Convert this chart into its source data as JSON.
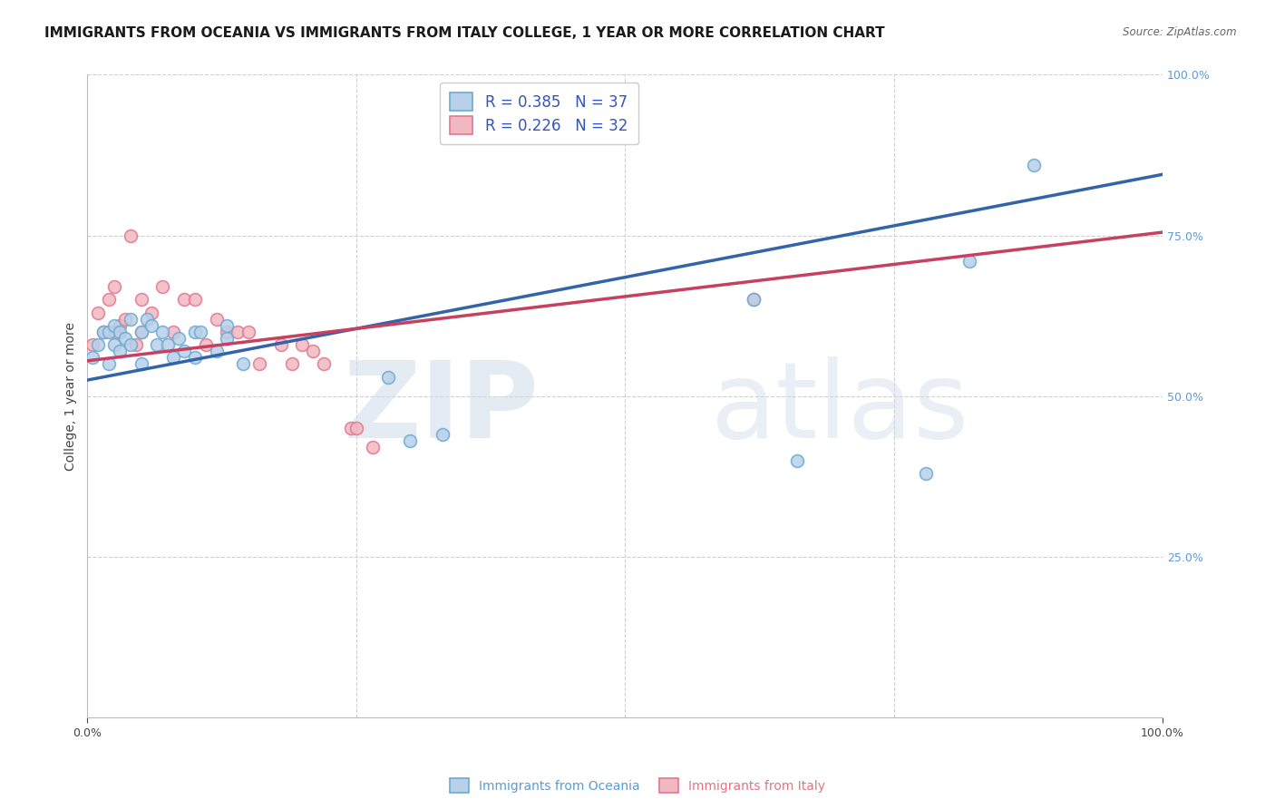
{
  "title": "IMMIGRANTS FROM OCEANIA VS IMMIGRANTS FROM ITALY COLLEGE, 1 YEAR OR MORE CORRELATION CHART",
  "source_text": "Source: ZipAtlas.com",
  "ylabel": "College, 1 year or more",
  "watermark_zip": "ZIP",
  "watermark_atlas": "atlas",
  "R_blue": 0.385,
  "N_blue": 37,
  "R_pink": 0.226,
  "N_pink": 32,
  "blue_scatter_x": [
    0.005,
    0.01,
    0.015,
    0.02,
    0.02,
    0.025,
    0.025,
    0.03,
    0.03,
    0.035,
    0.04,
    0.04,
    0.05,
    0.05,
    0.055,
    0.06,
    0.065,
    0.07,
    0.075,
    0.08,
    0.085,
    0.09,
    0.1,
    0.1,
    0.105,
    0.12,
    0.13,
    0.13,
    0.145,
    0.28,
    0.3,
    0.33,
    0.62,
    0.66,
    0.78,
    0.82,
    0.88
  ],
  "blue_scatter_y": [
    0.56,
    0.58,
    0.6,
    0.55,
    0.6,
    0.61,
    0.58,
    0.57,
    0.6,
    0.59,
    0.62,
    0.58,
    0.55,
    0.6,
    0.62,
    0.61,
    0.58,
    0.6,
    0.58,
    0.56,
    0.59,
    0.57,
    0.6,
    0.56,
    0.6,
    0.57,
    0.59,
    0.61,
    0.55,
    0.53,
    0.43,
    0.44,
    0.65,
    0.4,
    0.38,
    0.71,
    0.86
  ],
  "pink_scatter_x": [
    0.005,
    0.01,
    0.015,
    0.02,
    0.025,
    0.025,
    0.03,
    0.035,
    0.04,
    0.045,
    0.05,
    0.05,
    0.06,
    0.07,
    0.08,
    0.09,
    0.1,
    0.11,
    0.12,
    0.13,
    0.14,
    0.15,
    0.16,
    0.18,
    0.19,
    0.2,
    0.21,
    0.22,
    0.245,
    0.25,
    0.265,
    0.62
  ],
  "pink_scatter_y": [
    0.58,
    0.63,
    0.6,
    0.65,
    0.6,
    0.67,
    0.61,
    0.62,
    0.75,
    0.58,
    0.65,
    0.6,
    0.63,
    0.67,
    0.6,
    0.65,
    0.65,
    0.58,
    0.62,
    0.6,
    0.6,
    0.6,
    0.55,
    0.58,
    0.55,
    0.58,
    0.57,
    0.55,
    0.45,
    0.45,
    0.42,
    0.65
  ],
  "blue_line_y0": 0.525,
  "blue_line_y1": 0.845,
  "pink_line_y0": 0.555,
  "pink_line_y1": 0.755,
  "xlim": [
    0.0,
    1.0
  ],
  "ylim": [
    0.0,
    1.0
  ],
  "scatter_size": 100,
  "blue_scatter_color": "#b8d0ea",
  "blue_scatter_edge": "#6aabd2",
  "pink_scatter_color": "#f2b8c2",
  "pink_scatter_edge": "#e07890",
  "blue_line_color": "#3464a8",
  "pink_line_color": "#c84060",
  "grid_color": "#d0d0d0",
  "background_color": "#ffffff",
  "title_fontsize": 11,
  "ylabel_fontsize": 10,
  "tick_fontsize": 9,
  "legend_fontsize": 12,
  "legend_text_color": "#3355bb",
  "legend_N_color": "#3355bb"
}
